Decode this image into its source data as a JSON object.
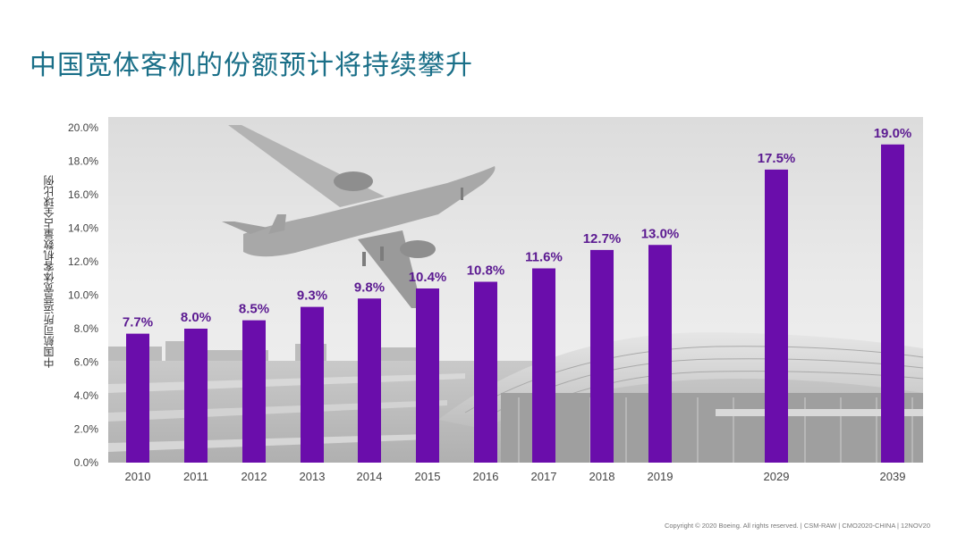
{
  "title": "中国宽体客机的份额预计将持续攀升",
  "footer": "Copyright © 2020 Boeing. All rights reserved.  |  CSM-RAW  |  CMO2020-CHINA  |  12NOV20",
  "colors": {
    "bar": "#6a0dab",
    "label": "#5b1a91",
    "title": "#1a6f88",
    "axis_text": "#444444"
  },
  "chart_data": {
    "type": "bar",
    "title": "中国宽体客机的份额预计将持续攀升",
    "xlabel": "",
    "ylabel": "中国航司所运营宽体客机数量占全球比例",
    "categories": [
      "2010",
      "2011",
      "2012",
      "2013",
      "2014",
      "2015",
      "2016",
      "2017",
      "2018",
      "2019",
      "2029",
      "2039"
    ],
    "values": [
      7.7,
      8.0,
      8.5,
      9.3,
      9.8,
      10.4,
      10.8,
      11.6,
      12.7,
      13.0,
      17.5,
      19.0
    ],
    "data_labels": [
      "7.7%",
      "8.0%",
      "8.5%",
      "9.3%",
      "9.8%",
      "10.4%",
      "10.8%",
      "11.6%",
      "12.7%",
      "13.0%",
      "17.5%",
      "19.0%"
    ],
    "ylim": [
      0,
      20
    ],
    "yticks": [
      "0.0%",
      "2.0%",
      "4.0%",
      "6.0%",
      "8.0%",
      "10.0%",
      "12.0%",
      "14.0%",
      "16.0%",
      "18.0%",
      "20.0%"
    ],
    "grid": false,
    "legend": "none",
    "background_image": "airplane-over-airport-terminal"
  }
}
